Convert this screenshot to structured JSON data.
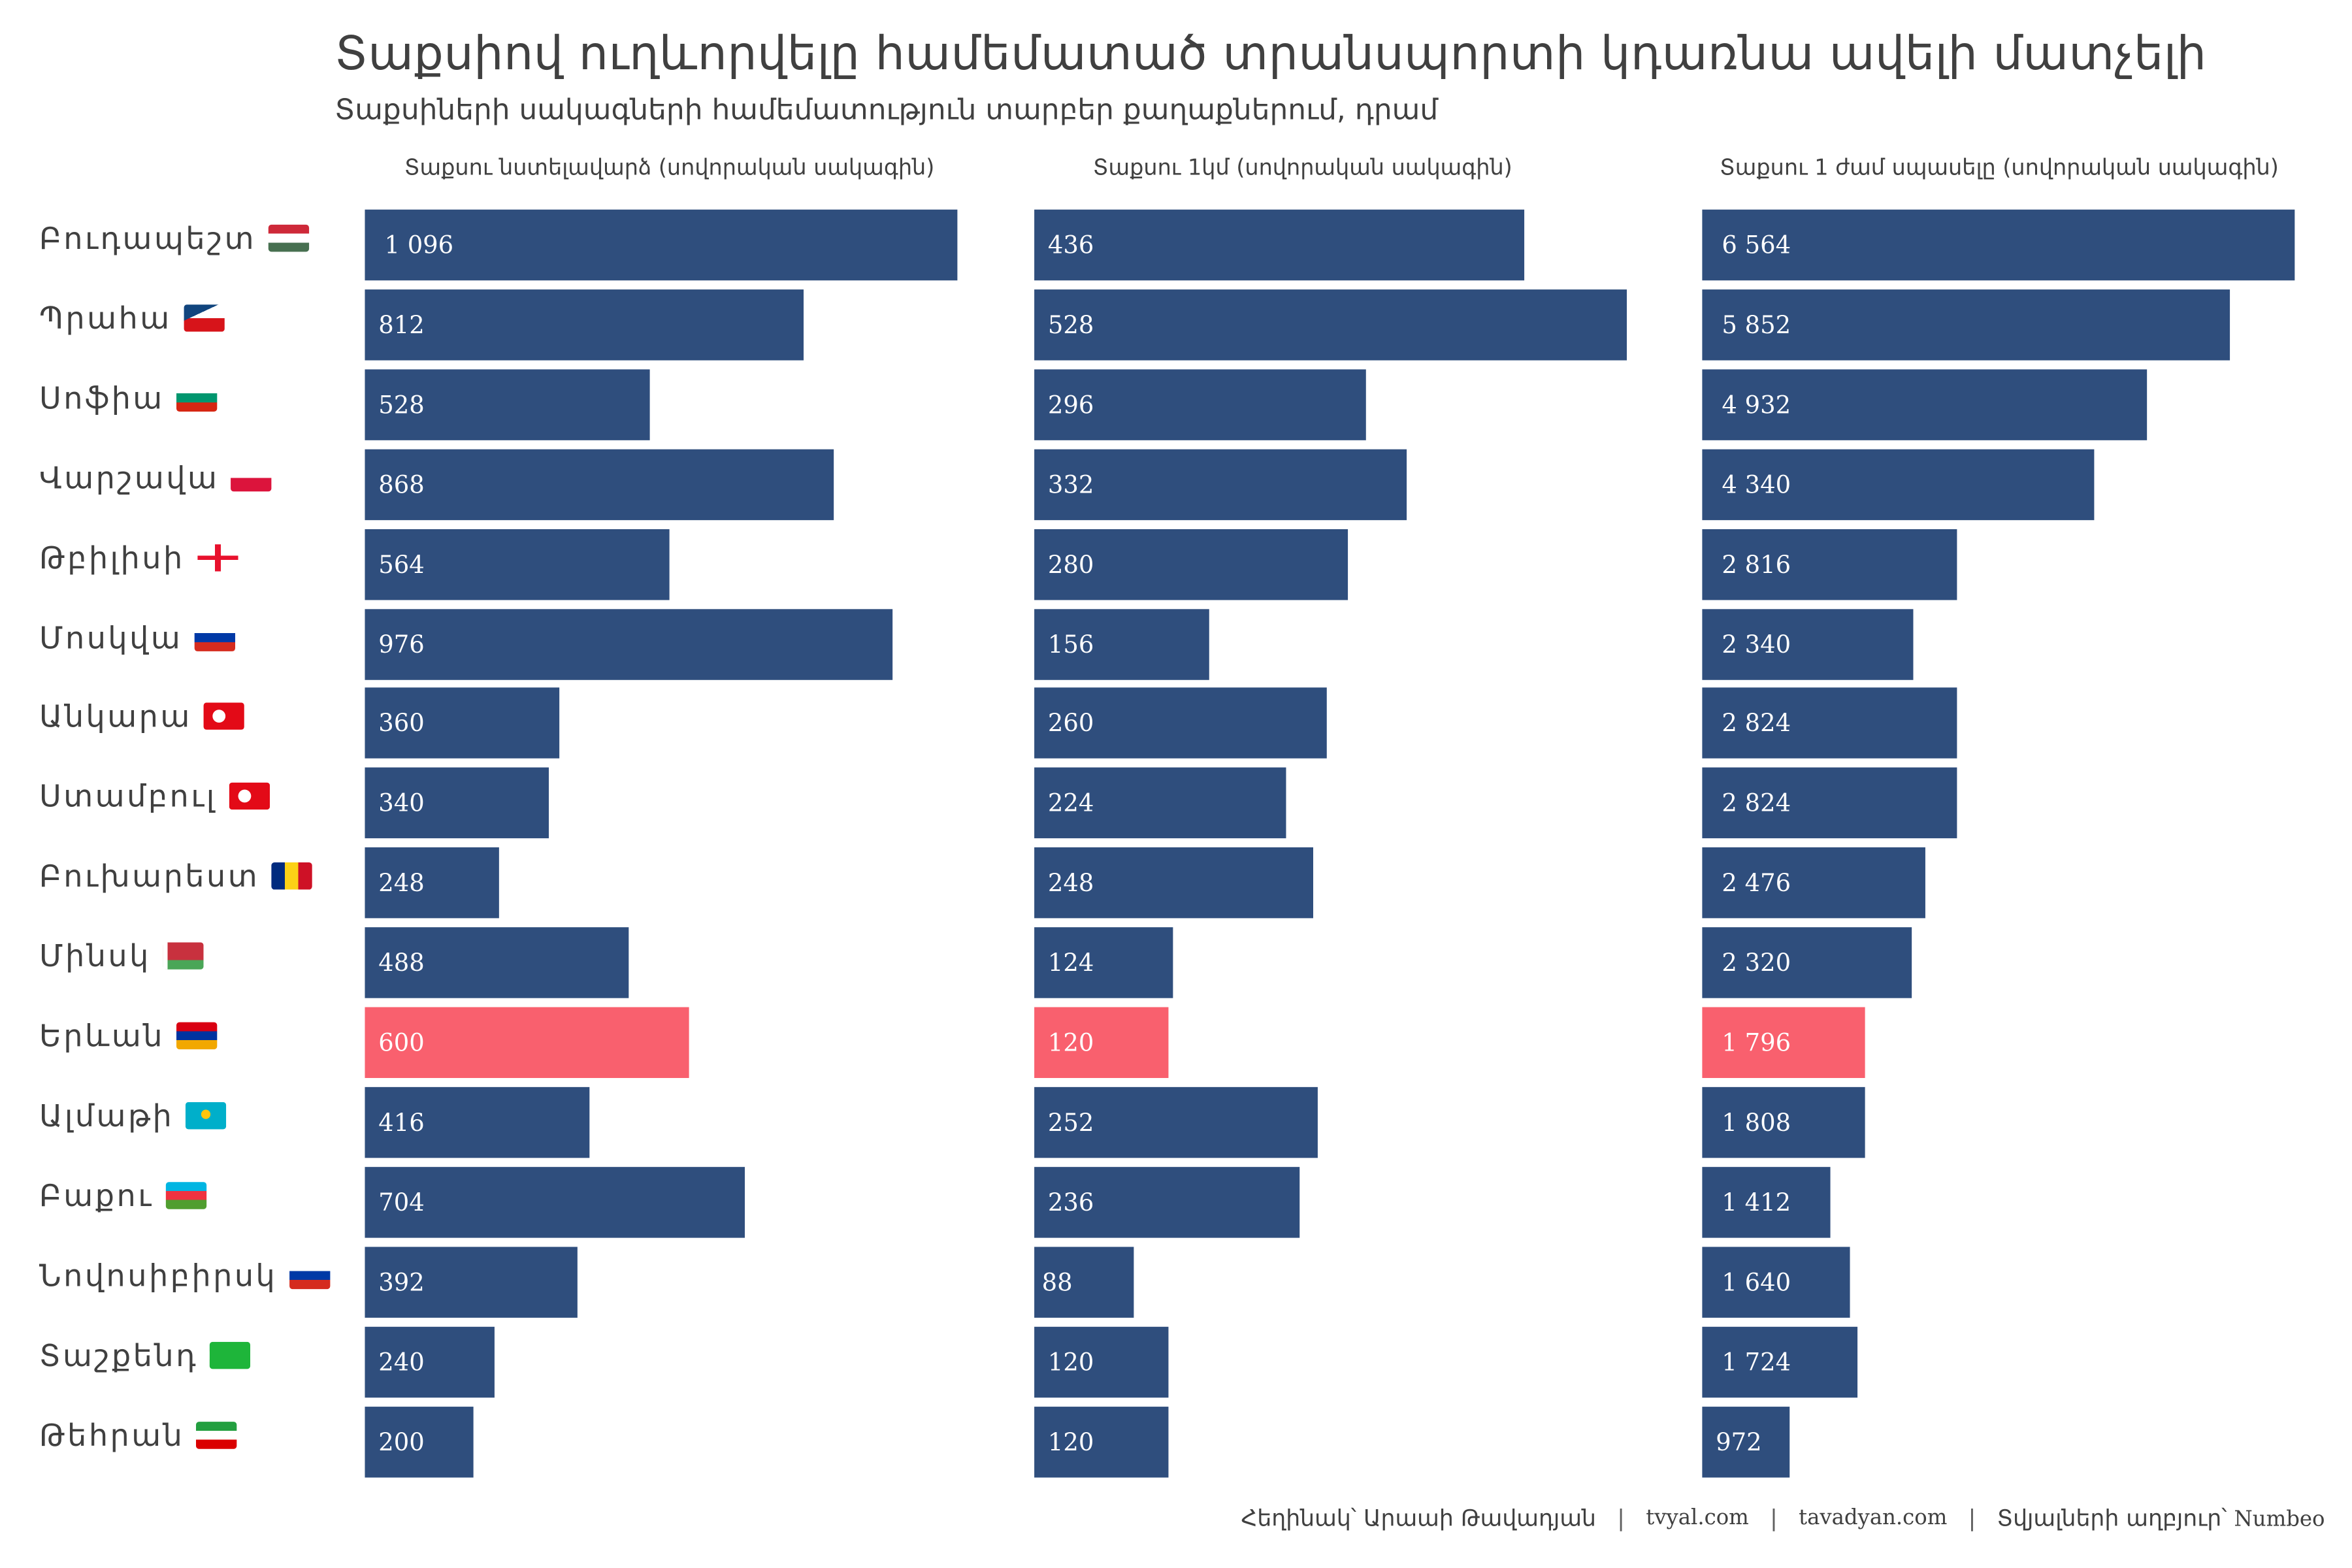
{
  "colors": {
    "default": "#2F4E7D",
    "highlight": "#F9606E",
    "text": "#404040"
  },
  "chart_data": {
    "type": "bar",
    "orientation": "horizontal",
    "title": "Տաքսիով ուղևորվելը համեմատած տրանսպորտի կդառնա ավելի մատչելի",
    "subtitle": "Տաքսիների սակագների համեմատություն տարբեր քաղաքներում, դրամ",
    "categories": [
      "Բուդապեշտ",
      "Պրահա",
      "Սոֆիա",
      "Վարշավա",
      "Թբիլիսի",
      "Մոսկվա",
      "Անկարա",
      "Ստամբուլ",
      "Բուխարեստ",
      "Մինսկ",
      "Երևան",
      "Ալմաթի",
      "Բաքու",
      "Նովոսիբիրսկ",
      "Տաշքենդ",
      "Թեհրան"
    ],
    "flags": [
      "hu",
      "cz",
      "bg",
      "pl",
      "ge",
      "ru",
      "tr",
      "tr",
      "ro",
      "by",
      "am",
      "kz",
      "az",
      "ru",
      "uz",
      "ir"
    ],
    "highlight_category": "Երևան",
    "series": [
      {
        "name": "Տաքսու նստելավարձ (սովորական սակագին)",
        "values": [
          1096,
          812,
          528,
          868,
          564,
          976,
          360,
          340,
          248,
          488,
          600,
          416,
          704,
          392,
          240,
          200
        ],
        "labels": [
          "1 096",
          "812",
          "528",
          "868",
          "564",
          "976",
          "360",
          "340",
          "248",
          "488",
          "600",
          "416",
          "704",
          "392",
          "240",
          "200"
        ],
        "xlim": [
          0,
          1096
        ]
      },
      {
        "name": "Տաքսու 1կմ (սովորական սակագին)",
        "values": [
          436,
          528,
          296,
          332,
          280,
          156,
          260,
          224,
          248,
          124,
          120,
          252,
          236,
          88,
          120,
          120
        ],
        "labels": [
          "436",
          "528",
          "296",
          "332",
          "280",
          "156",
          "260",
          "224",
          "248",
          "124",
          "120",
          "252",
          "236",
          "88",
          "120",
          "120"
        ],
        "xlim": [
          0,
          528
        ]
      },
      {
        "name": "Տաքսու 1 ժամ սպասելը (սովորական սակագին)",
        "values": [
          6564,
          5852,
          4932,
          4340,
          2816,
          2340,
          2824,
          2824,
          2476,
          2320,
          1796,
          1808,
          1412,
          1640,
          1724,
          972
        ],
        "labels": [
          "6 564",
          "5 852",
          "4 932",
          "4 340",
          "2 816",
          "2 340",
          "2 824",
          "2 824",
          "2 476",
          "2 320",
          "1 796",
          "1 808",
          "1 412",
          "1 640",
          "1 724",
          "972"
        ],
        "xlim": [
          0,
          6564
        ]
      }
    ],
    "xlabel": "",
    "ylabel": "",
    "grid": false,
    "legend": "none"
  },
  "footer": {
    "author": "Հեղինակ՝ Արաաի Թավադյան",
    "site1": "tvyal.com",
    "site2": "tavadyan.com",
    "source_label": "Տվյալների աղբյուր՝",
    "source_name": "Numbeo",
    "separator": "|"
  }
}
